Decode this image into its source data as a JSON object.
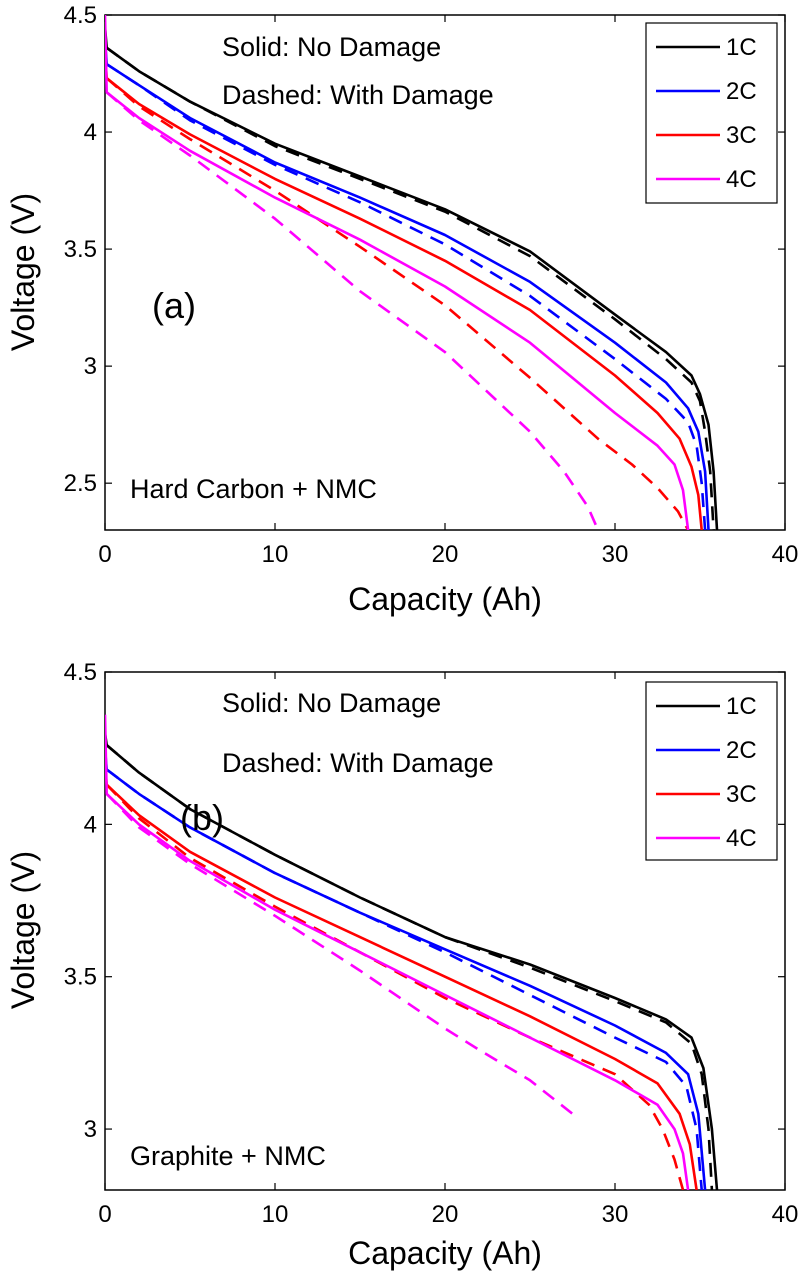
{
  "chart_data": [
    {
      "type": "line",
      "panel_label": "(a)",
      "chemistry_label": "Hard Carbon + NMC",
      "annotation_solid": "Solid: No Damage",
      "annotation_dashed": "Dashed: With Damage",
      "xlabel": "Capacity (Ah)",
      "ylabel": "Voltage (V)",
      "xlim": [
        0,
        40
      ],
      "ylim": [
        2.3,
        4.5
      ],
      "xticks": [
        0,
        10,
        20,
        30,
        40
      ],
      "xtick_labels": [
        "0",
        "10",
        "20",
        "30",
        "40"
      ],
      "yticks": [
        2.5,
        3,
        3.5,
        4,
        4.5
      ],
      "ytick_labels": [
        "2.5",
        "3",
        "3.5",
        "4",
        "4.5"
      ],
      "legend": [
        "1C",
        "2C",
        "3C",
        "4C"
      ],
      "legend_position": "top-right",
      "series": [
        {
          "name": "1C",
          "style": "solid",
          "color": "#000000",
          "points": [
            [
              0,
              4.45
            ],
            [
              0.1,
              4.36
            ],
            [
              2,
              4.26
            ],
            [
              5,
              4.13
            ],
            [
              10,
              3.95
            ],
            [
              15,
              3.81
            ],
            [
              20,
              3.67
            ],
            [
              25,
              3.49
            ],
            [
              30,
              3.22
            ],
            [
              33,
              3.06
            ],
            [
              34.5,
              2.96
            ],
            [
              35,
              2.88
            ],
            [
              35.5,
              2.75
            ],
            [
              35.8,
              2.55
            ],
            [
              36,
              2.3
            ]
          ]
        },
        {
          "name": "1C damaged",
          "style": "dashed",
          "color": "#000000",
          "points": [
            [
              0.1,
              4.36
            ],
            [
              2,
              4.26
            ],
            [
              5,
              4.13
            ],
            [
              10,
              3.94
            ],
            [
              15,
              3.8
            ],
            [
              20,
              3.66
            ],
            [
              25,
              3.47
            ],
            [
              30,
              3.2
            ],
            [
              33,
              3.03
            ],
            [
              34.5,
              2.93
            ],
            [
              35,
              2.85
            ],
            [
              35.3,
              2.72
            ],
            [
              35.6,
              2.55
            ],
            [
              35.8,
              2.3
            ]
          ]
        },
        {
          "name": "2C",
          "style": "solid",
          "color": "#0000ff",
          "points": [
            [
              0,
              4.4
            ],
            [
              0.1,
              4.29
            ],
            [
              2,
              4.2
            ],
            [
              5,
              4.06
            ],
            [
              10,
              3.87
            ],
            [
              15,
              3.72
            ],
            [
              20,
              3.56
            ],
            [
              25,
              3.36
            ],
            [
              30,
              3.1
            ],
            [
              33,
              2.93
            ],
            [
              34.3,
              2.82
            ],
            [
              34.9,
              2.72
            ],
            [
              35.3,
              2.55
            ],
            [
              35.5,
              2.3
            ]
          ]
        },
        {
          "name": "2C damaged",
          "style": "dashed",
          "color": "#0000ff",
          "points": [
            [
              0.1,
              4.29
            ],
            [
              2,
              4.2
            ],
            [
              5,
              4.05
            ],
            [
              10,
              3.86
            ],
            [
              15,
              3.7
            ],
            [
              20,
              3.52
            ],
            [
              25,
              3.3
            ],
            [
              30,
              3.03
            ],
            [
              33,
              2.86
            ],
            [
              34.3,
              2.76
            ],
            [
              34.8,
              2.66
            ],
            [
              35.1,
              2.5
            ],
            [
              35.3,
              2.3
            ]
          ]
        },
        {
          "name": "3C",
          "style": "solid",
          "color": "#ff0000",
          "points": [
            [
              0,
              4.35
            ],
            [
              0.1,
              4.23
            ],
            [
              2,
              4.12
            ],
            [
              5,
              3.99
            ],
            [
              10,
              3.8
            ],
            [
              15,
              3.63
            ],
            [
              20,
              3.45
            ],
            [
              25,
              3.24
            ],
            [
              30,
              2.96
            ],
            [
              32.5,
              2.8
            ],
            [
              33.8,
              2.69
            ],
            [
              34.5,
              2.57
            ],
            [
              34.9,
              2.45
            ],
            [
              35.1,
              2.3
            ]
          ]
        },
        {
          "name": "3C damaged",
          "style": "dashed",
          "color": "#ff0000",
          "points": [
            [
              0.1,
              4.23
            ],
            [
              2,
              4.11
            ],
            [
              5,
              3.97
            ],
            [
              10,
              3.75
            ],
            [
              15,
              3.51
            ],
            [
              20,
              3.26
            ],
            [
              25,
              2.95
            ],
            [
              29,
              2.69
            ],
            [
              31,
              2.58
            ],
            [
              32.5,
              2.48
            ],
            [
              33.7,
              2.38
            ],
            [
              34.3,
              2.3
            ]
          ]
        },
        {
          "name": "4C",
          "style": "solid",
          "color": "#ff00ff",
          "points": [
            [
              0,
              4.5
            ],
            [
              0.1,
              4.17
            ],
            [
              2,
              4.06
            ],
            [
              5,
              3.92
            ],
            [
              10,
              3.72
            ],
            [
              15,
              3.54
            ],
            [
              20,
              3.34
            ],
            [
              25,
              3.1
            ],
            [
              30,
              2.8
            ],
            [
              32.5,
              2.66
            ],
            [
              33.5,
              2.58
            ],
            [
              34,
              2.47
            ],
            [
              34.3,
              2.3
            ]
          ]
        },
        {
          "name": "4C damaged",
          "style": "dashed",
          "color": "#ff00ff",
          "points": [
            [
              0.1,
              4.17
            ],
            [
              2,
              4.05
            ],
            [
              5,
              3.9
            ],
            [
              10,
              3.63
            ],
            [
              15,
              3.32
            ],
            [
              20,
              3.06
            ],
            [
              25,
              2.72
            ],
            [
              27,
              2.55
            ],
            [
              28.4,
              2.4
            ],
            [
              29,
              2.3
            ]
          ]
        }
      ]
    },
    {
      "type": "line",
      "panel_label": "(b)",
      "chemistry_label": "Graphite + NMC",
      "annotation_solid": "Solid: No Damage",
      "annotation_dashed": "Dashed: With Damage",
      "xlabel": "Capacity (Ah)",
      "ylabel": "Voltage (V)",
      "xlim": [
        0,
        40
      ],
      "ylim": [
        2.8,
        4.5
      ],
      "xticks": [
        0,
        10,
        20,
        30,
        40
      ],
      "xtick_labels": [
        "0",
        "10",
        "20",
        "30",
        "40"
      ],
      "yticks": [
        3,
        3.5,
        4,
        4.5
      ],
      "ytick_labels": [
        "3",
        "3.5",
        "4",
        "4.5"
      ],
      "legend": [
        "1C",
        "2C",
        "3C",
        "4C"
      ],
      "legend_position": "top-right",
      "series": [
        {
          "name": "1C",
          "style": "solid",
          "color": "#000000",
          "points": [
            [
              0,
              4.3
            ],
            [
              0.1,
              4.26
            ],
            [
              2,
              4.17
            ],
            [
              5,
              4.05
            ],
            [
              10,
              3.9
            ],
            [
              15,
              3.76
            ],
            [
              20,
              3.63
            ],
            [
              25,
              3.54
            ],
            [
              30,
              3.43
            ],
            [
              33,
              3.36
            ],
            [
              34.5,
              3.3
            ],
            [
              35.2,
              3.2
            ],
            [
              35.7,
              3.0
            ],
            [
              36,
              2.8
            ]
          ]
        },
        {
          "name": "1C damaged",
          "style": "dashed",
          "color": "#000000",
          "points": [
            [
              0.1,
              4.26
            ],
            [
              2,
              4.17
            ],
            [
              5,
              4.05
            ],
            [
              10,
              3.9
            ],
            [
              15,
              3.76
            ],
            [
              20,
              3.63
            ],
            [
              25,
              3.53
            ],
            [
              30,
              3.42
            ],
            [
              33,
              3.35
            ],
            [
              34.5,
              3.28
            ],
            [
              35.1,
              3.18
            ],
            [
              35.5,
              3.0
            ],
            [
              35.7,
              2.8
            ]
          ]
        },
        {
          "name": "2C",
          "style": "solid",
          "color": "#0000ff",
          "points": [
            [
              0,
              4.25
            ],
            [
              0.1,
              4.18
            ],
            [
              2,
              4.1
            ],
            [
              5,
              3.99
            ],
            [
              10,
              3.84
            ],
            [
              15,
              3.71
            ],
            [
              20,
              3.59
            ],
            [
              25,
              3.47
            ],
            [
              30,
              3.34
            ],
            [
              33,
              3.25
            ],
            [
              34.3,
              3.18
            ],
            [
              34.9,
              3.05
            ],
            [
              35.3,
              2.8
            ]
          ]
        },
        {
          "name": "2C damaged",
          "style": "dashed",
          "color": "#0000ff",
          "points": [
            [
              0.1,
              4.18
            ],
            [
              2,
              4.1
            ],
            [
              5,
              3.99
            ],
            [
              10,
              3.84
            ],
            [
              15,
              3.71
            ],
            [
              20,
              3.58
            ],
            [
              25,
              3.44
            ],
            [
              30,
              3.3
            ],
            [
              33,
              3.22
            ],
            [
              34.2,
              3.14
            ],
            [
              34.8,
              3.0
            ],
            [
              35.1,
              2.8
            ]
          ]
        },
        {
          "name": "3C",
          "style": "solid",
          "color": "#ff0000",
          "points": [
            [
              0,
              4.2
            ],
            [
              0.1,
              4.13
            ],
            [
              2,
              4.03
            ],
            [
              5,
              3.91
            ],
            [
              10,
              3.76
            ],
            [
              15,
              3.63
            ],
            [
              20,
              3.5
            ],
            [
              25,
              3.37
            ],
            [
              30,
              3.23
            ],
            [
              32.5,
              3.15
            ],
            [
              33.8,
              3.05
            ],
            [
              34.4,
              2.95
            ],
            [
              34.8,
              2.8
            ]
          ]
        },
        {
          "name": "3C damaged",
          "style": "dashed",
          "color": "#ff0000",
          "points": [
            [
              0.1,
              4.13
            ],
            [
              2,
              4.02
            ],
            [
              5,
              3.89
            ],
            [
              10,
              3.73
            ],
            [
              15,
              3.58
            ],
            [
              20,
              3.43
            ],
            [
              25,
              3.3
            ],
            [
              30,
              3.18
            ],
            [
              32,
              3.08
            ],
            [
              32.8,
              3.0
            ],
            [
              33.5,
              2.9
            ],
            [
              34,
              2.8
            ]
          ]
        },
        {
          "name": "4C",
          "style": "solid",
          "color": "#ff00ff",
          "points": [
            [
              0,
              4.36
            ],
            [
              0.1,
              4.1
            ],
            [
              2,
              4.0
            ],
            [
              5,
              3.88
            ],
            [
              10,
              3.72
            ],
            [
              15,
              3.58
            ],
            [
              20,
              3.44
            ],
            [
              25,
              3.3
            ],
            [
              30,
              3.16
            ],
            [
              32.5,
              3.08
            ],
            [
              33.5,
              3.0
            ],
            [
              34,
              2.92
            ],
            [
              34.3,
              2.8
            ]
          ]
        },
        {
          "name": "4C damaged",
          "style": "dashed",
          "color": "#ff00ff",
          "points": [
            [
              0.1,
              4.1
            ],
            [
              2,
              3.99
            ],
            [
              5,
              3.87
            ],
            [
              10,
              3.7
            ],
            [
              15,
              3.52
            ],
            [
              20,
              3.33
            ],
            [
              22,
              3.26
            ],
            [
              25,
              3.16
            ],
            [
              27.5,
              3.05
            ]
          ]
        }
      ]
    }
  ]
}
